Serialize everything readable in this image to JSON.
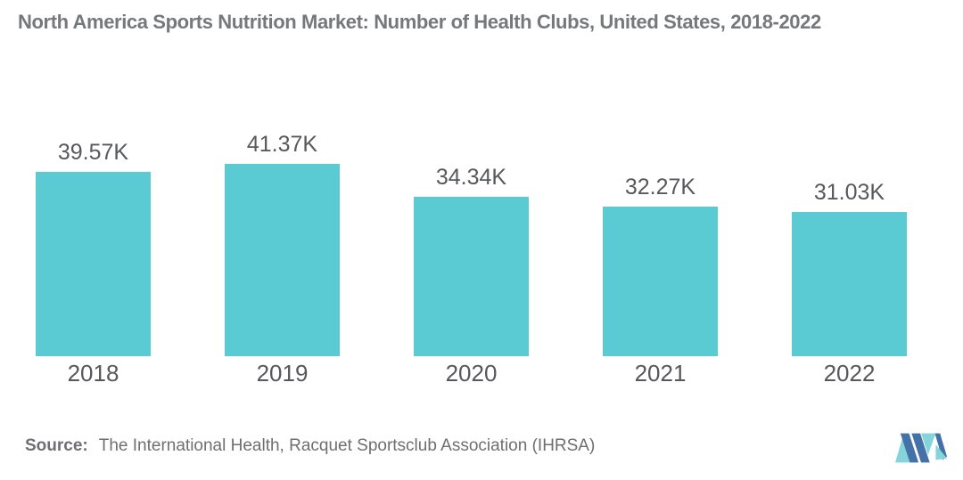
{
  "title": "North America Sports Nutrition Market: Number of Health Clubs, United States, 2018-2022",
  "chart_data": {
    "type": "bar",
    "title": "North America Sports Nutrition Market: Number of Health Clubs, United States, 2018-2022",
    "categories": [
      "2018",
      "2019",
      "2020",
      "2021",
      "2022"
    ],
    "values": [
      39.57,
      41.37,
      34.34,
      32.27,
      31.03
    ],
    "value_labels": [
      "39.57K",
      "41.37K",
      "34.34K",
      "32.27K",
      "31.03K"
    ],
    "unit": "K",
    "xlabel": "",
    "ylabel": "",
    "ylim": [
      0,
      41.37
    ],
    "grid": false,
    "legend": false,
    "bar_color": "#5ACAD3",
    "label_color": "#58595C"
  },
  "footer": {
    "source_label": "Source:",
    "source_text": "The International Health, Racquet Sportsclub Association (IHRSA)"
  },
  "logo": {
    "name": "mordor-intelligence-logo",
    "colors": {
      "blue": "#4472A8",
      "teal": "#85D4DB"
    }
  }
}
